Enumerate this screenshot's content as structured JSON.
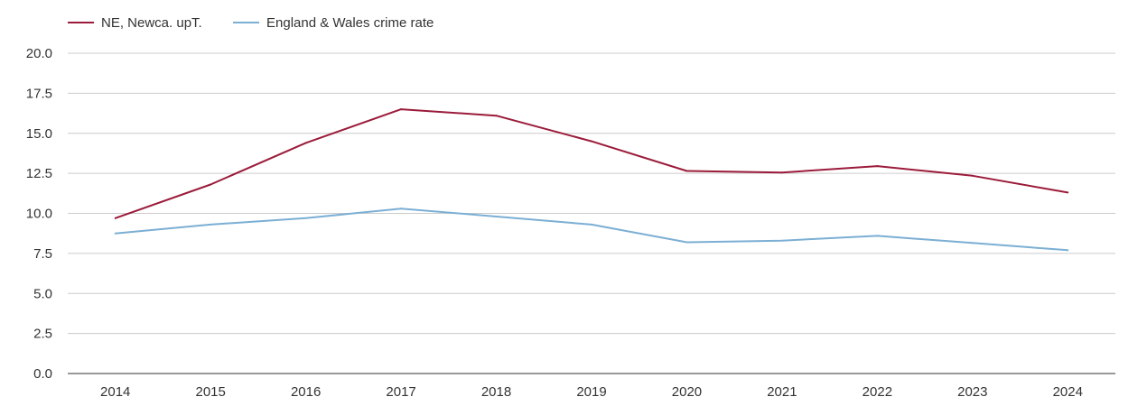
{
  "chart_data": {
    "type": "line",
    "title": "",
    "xlabel": "",
    "ylabel": "",
    "categories": [
      "2014",
      "2015",
      "2016",
      "2017",
      "2018",
      "2019",
      "2020",
      "2021",
      "2022",
      "2023",
      "2024"
    ],
    "series": [
      {
        "name": "NE, Newca. upT.",
        "color": "#9b1b3a",
        "values": [
          9.7,
          11.8,
          14.4,
          16.5,
          16.1,
          14.5,
          12.65,
          12.55,
          12.95,
          12.35,
          11.3
        ]
      },
      {
        "name": "England & Wales crime rate",
        "color": "#7bafd4",
        "values": [
          8.75,
          9.3,
          9.7,
          10.3,
          9.8,
          9.3,
          8.2,
          8.3,
          8.6,
          8.15,
          7.7
        ]
      }
    ],
    "ylim": [
      0,
      20
    ],
    "yticks": [
      "0.0",
      "2.5",
      "5.0",
      "7.5",
      "10.0",
      "12.5",
      "15.0",
      "17.5",
      "20.0"
    ],
    "grid": true,
    "legend_position": "top-left"
  }
}
